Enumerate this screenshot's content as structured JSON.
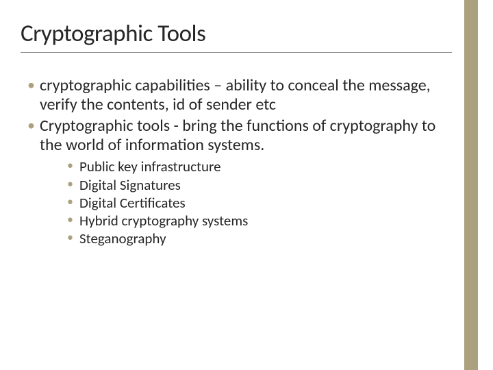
{
  "slide": {
    "title": "Cryptographic Tools",
    "bullets": [
      "cryptographic capabilities – ability to conceal the message, verify the contents, id of sender etc",
      "Cryptographic tools - bring the functions of cryptography to the world of information systems."
    ],
    "sub_bullets": [
      "Public key infrastructure",
      "Digital Signatures",
      "Digital Certificates",
      "Hybrid cryptography systems",
      "Steganography"
    ]
  },
  "style": {
    "accent_color": "#aba17e",
    "background_color": "#ffffff",
    "text_color": "#262626",
    "title_fontsize": 35,
    "body_fontsize": 24,
    "sub_fontsize": 21,
    "accent_bar_width": 20,
    "accent_bar_right": 22
  }
}
